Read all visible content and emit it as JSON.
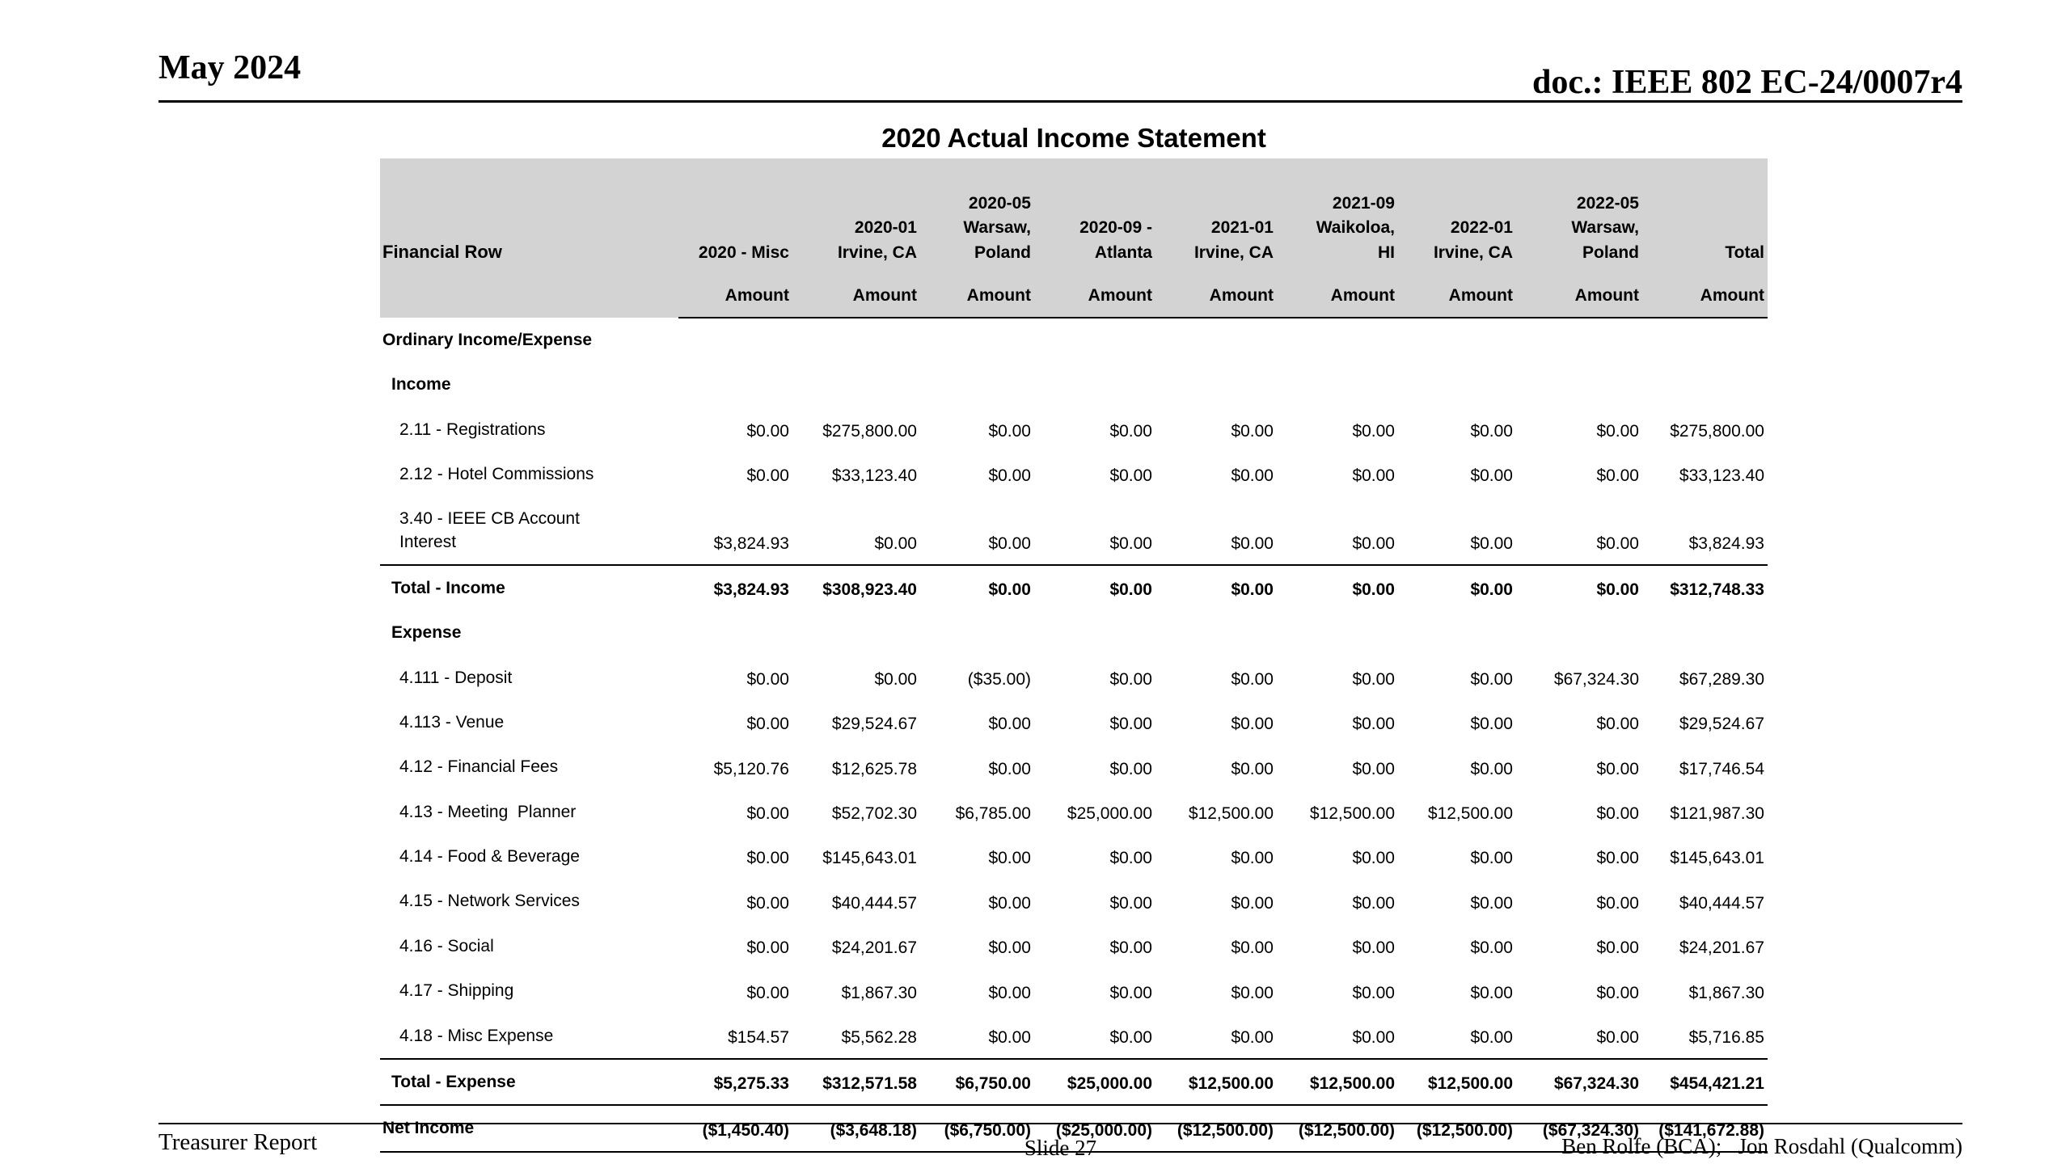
{
  "slide": {
    "date": "May 2024",
    "doc_ref": "doc.: IEEE 802 EC-24/0007r4",
    "title": "2020 Actual Income Statement"
  },
  "table": {
    "row_header": "Financial Row",
    "amount_label": "Amount",
    "columns": [
      "2020 - Misc",
      "2020-01\nIrvine, CA",
      "2020-05\nWarsaw,\nPoland",
      "2020-09 -\nAtlanta",
      "2021-01\nIrvine, CA",
      "2021-09\nWaikoloa,\nHI",
      "2022-01\nIrvine, CA",
      "2022-05\nWarsaw,\nPoland",
      "Total"
    ],
    "rows": [
      {
        "type": "section",
        "indent": 0,
        "label": "Ordinary Income/Expense",
        "cells": []
      },
      {
        "type": "section",
        "indent": 1,
        "label": "Income",
        "cells": []
      },
      {
        "type": "item",
        "indent": 2,
        "label": "2.11 - Registrations",
        "cells": [
          "$0.00",
          "$275,800.00",
          "$0.00",
          "$0.00",
          "$0.00",
          "$0.00",
          "$0.00",
          "$0.00",
          "$275,800.00"
        ]
      },
      {
        "type": "item",
        "indent": 2,
        "label": "2.12 - Hotel Commissions",
        "cells": [
          "$0.00",
          "$33,123.40",
          "$0.00",
          "$0.00",
          "$0.00",
          "$0.00",
          "$0.00",
          "$0.00",
          "$33,123.40"
        ]
      },
      {
        "type": "item",
        "indent": 2,
        "label": "3.40 - IEEE CB Account\nInterest",
        "cells": [
          "$3,824.93",
          "$0.00",
          "$0.00",
          "$0.00",
          "$0.00",
          "$0.00",
          "$0.00",
          "$0.00",
          "$3,824.93"
        ]
      },
      {
        "type": "total",
        "indent": 1,
        "label": "Total - Income",
        "rule_top": true,
        "cells": [
          "$3,824.93",
          "$308,923.40",
          "$0.00",
          "$0.00",
          "$0.00",
          "$0.00",
          "$0.00",
          "$0.00",
          "$312,748.33"
        ]
      },
      {
        "type": "section",
        "indent": 1,
        "label": "Expense",
        "cells": []
      },
      {
        "type": "item",
        "indent": 2,
        "label": "4.111 - Deposit",
        "cells": [
          "$0.00",
          "$0.00",
          "($35.00)",
          "$0.00",
          "$0.00",
          "$0.00",
          "$0.00",
          "$67,324.30",
          "$67,289.30"
        ]
      },
      {
        "type": "item",
        "indent": 2,
        "label": "4.113 - Venue",
        "cells": [
          "$0.00",
          "$29,524.67",
          "$0.00",
          "$0.00",
          "$0.00",
          "$0.00",
          "$0.00",
          "$0.00",
          "$29,524.67"
        ]
      },
      {
        "type": "item",
        "indent": 2,
        "label": "4.12 - Financial Fees",
        "cells": [
          "$5,120.76",
          "$12,625.78",
          "$0.00",
          "$0.00",
          "$0.00",
          "$0.00",
          "$0.00",
          "$0.00",
          "$17,746.54"
        ]
      },
      {
        "type": "item",
        "indent": 2,
        "label": "4.13 - Meeting  Planner",
        "cells": [
          "$0.00",
          "$52,702.30",
          "$6,785.00",
          "$25,000.00",
          "$12,500.00",
          "$12,500.00",
          "$12,500.00",
          "$0.00",
          "$121,987.30"
        ]
      },
      {
        "type": "item",
        "indent": 2,
        "label": "4.14 - Food & Beverage",
        "cells": [
          "$0.00",
          "$145,643.01",
          "$0.00",
          "$0.00",
          "$0.00",
          "$0.00",
          "$0.00",
          "$0.00",
          "$145,643.01"
        ]
      },
      {
        "type": "item",
        "indent": 2,
        "label": "4.15 - Network Services",
        "cells": [
          "$0.00",
          "$40,444.57",
          "$0.00",
          "$0.00",
          "$0.00",
          "$0.00",
          "$0.00",
          "$0.00",
          "$40,444.57"
        ]
      },
      {
        "type": "item",
        "indent": 2,
        "label": "4.16 - Social",
        "cells": [
          "$0.00",
          "$24,201.67",
          "$0.00",
          "$0.00",
          "$0.00",
          "$0.00",
          "$0.00",
          "$0.00",
          "$24,201.67"
        ]
      },
      {
        "type": "item",
        "indent": 2,
        "label": "4.17 - Shipping",
        "cells": [
          "$0.00",
          "$1,867.30",
          "$0.00",
          "$0.00",
          "$0.00",
          "$0.00",
          "$0.00",
          "$0.00",
          "$1,867.30"
        ]
      },
      {
        "type": "item",
        "indent": 2,
        "label": "4.18 - Misc Expense",
        "cells": [
          "$154.57",
          "$5,562.28",
          "$0.00",
          "$0.00",
          "$0.00",
          "$0.00",
          "$0.00",
          "$0.00",
          "$5,716.85"
        ]
      },
      {
        "type": "total",
        "indent": 1,
        "label": "Total - Expense",
        "rule_top": true,
        "cells": [
          "$5,275.33",
          "$312,571.58",
          "$6,750.00",
          "$25,000.00",
          "$12,500.00",
          "$12,500.00",
          "$12,500.00",
          "$67,324.30",
          "$454,421.21"
        ]
      },
      {
        "type": "net",
        "indent": 0,
        "label": "Net Income",
        "rule_top": true,
        "rule_bottom": true,
        "cells": [
          "($1,450.40)",
          "($3,648.18)",
          "($6,750.00)",
          "($25,000.00)",
          "($12,500.00)",
          "($12,500.00)",
          "($12,500.00)",
          "($67,324.30)",
          "($141,672.88)"
        ]
      }
    ]
  },
  "footer": {
    "left": "Treasurer Report",
    "center": "Slide 27",
    "right": "Ben Rolfe (BCA);   Jon Rosdahl (Qualcomm)"
  },
  "colors": {
    "header_bg": "#d3d3d3",
    "text": "#000000",
    "background": "#ffffff"
  }
}
